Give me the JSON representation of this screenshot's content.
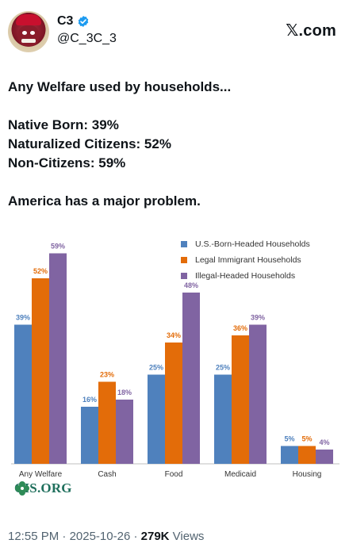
{
  "header": {
    "display_name": "C3",
    "handle": "@C_3C_3",
    "brand": "𝕏.com",
    "verified_color": "#1d9bf0"
  },
  "tweet": {
    "lines": [
      "Any Welfare used by households...",
      "Native Born: 39%",
      "Naturalized Citizens: 52%",
      "Non-Citizens: 59%",
      "America has a major problem."
    ]
  },
  "chart_data": {
    "type": "bar",
    "categories": [
      "Any Welfare",
      "Cash",
      "Food",
      "Medicaid",
      "Housing"
    ],
    "series": [
      {
        "name": "U.S.-Born-Headed Households",
        "values": [
          39,
          16,
          25,
          25,
          5
        ],
        "labels": [
          "39%",
          "16%",
          "25%",
          "25%",
          "5%"
        ],
        "color": "#4f81bd"
      },
      {
        "name": "Legal Immigrant Households",
        "values": [
          52,
          23,
          34,
          36,
          5
        ],
        "labels": [
          "52%",
          "23%",
          "34%",
          "36%",
          "5%"
        ],
        "color": "#e36c09"
      },
      {
        "name": "Illegal-Headed Households",
        "values": [
          59,
          18,
          48,
          39,
          4
        ],
        "labels": [
          "59%",
          "18%",
          "48%",
          "39%",
          "4%"
        ],
        "color": "#8064a2"
      }
    ],
    "ylim": [
      0,
      60
    ],
    "grid": false,
    "legend": "top-right",
    "source_logo": "CIS.ORG",
    "label_colors": [
      "#4f81bd",
      "#e36c09",
      "#8064a2"
    ]
  },
  "footer": {
    "time": "12:55 PM",
    "separator": "·",
    "date": "2025-10-26",
    "views_count": "279K",
    "views_label": "Views"
  }
}
